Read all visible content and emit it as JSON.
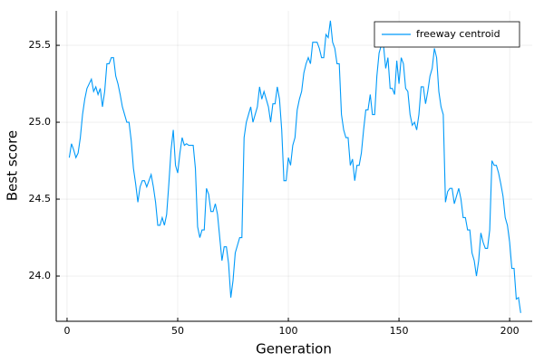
{
  "chart_data": {
    "type": "line",
    "xlabel": "Generation",
    "ylabel": "Best score",
    "xlim": [
      -4.9,
      210.2
    ],
    "ylim": [
      23.706,
      25.724
    ],
    "xticks": [
      0,
      50,
      100,
      150,
      200
    ],
    "yticks": [
      {
        "value": 24,
        "label": "24.0"
      },
      24.5,
      {
        "value": 25,
        "label": "25.0"
      },
      25.5
    ],
    "grid": true,
    "legend": "top-right",
    "x": [
      1,
      2,
      3,
      4,
      5,
      6,
      7,
      8,
      9,
      10,
      11,
      12,
      13,
      14,
      15,
      16,
      17,
      18,
      19,
      20,
      21,
      22,
      23,
      24,
      25,
      26,
      27,
      28,
      29,
      30,
      31,
      32,
      33,
      34,
      35,
      36,
      37,
      38,
      39,
      40,
      41,
      42,
      43,
      44,
      45,
      46,
      47,
      48,
      49,
      50,
      51,
      52,
      53,
      54,
      55,
      56,
      57,
      58,
      59,
      60,
      61,
      62,
      63,
      64,
      65,
      66,
      67,
      68,
      69,
      70,
      71,
      72,
      73,
      74,
      75,
      76,
      77,
      78,
      79,
      80,
      81,
      82,
      83,
      84,
      85,
      86,
      87,
      88,
      89,
      90,
      91,
      92,
      93,
      94,
      95,
      96,
      97,
      98,
      99,
      100,
      101,
      102,
      103,
      104,
      105,
      106,
      107,
      108,
      109,
      110,
      111,
      112,
      113,
      114,
      115,
      116,
      117,
      118,
      119,
      120,
      121,
      122,
      123,
      124,
      125,
      126,
      127,
      128,
      129,
      130,
      131,
      132,
      133,
      134,
      135,
      136,
      137,
      138,
      139,
      140,
      141,
      142,
      143,
      144,
      145,
      146,
      147,
      148,
      149,
      150,
      151,
      152,
      153,
      154,
      155,
      156,
      157,
      158,
      159,
      160,
      161,
      162,
      163,
      164,
      165,
      166,
      167,
      168,
      169,
      170,
      171,
      172,
      173,
      174,
      175,
      176,
      177,
      178,
      179,
      180,
      181,
      182,
      183,
      184,
      185,
      186,
      187,
      188,
      189,
      190,
      191,
      192,
      193,
      194,
      195,
      196,
      197,
      198,
      199,
      200,
      201,
      202,
      203,
      204,
      205
    ],
    "series": [
      {
        "name": "freeway centroid",
        "color": "#009af9",
        "values": [
          24.77,
          24.86,
          24.82,
          24.77,
          24.8,
          24.9,
          25.05,
          25.15,
          25.22,
          25.25,
          25.28,
          25.2,
          25.23,
          25.18,
          25.22,
          25.1,
          25.2,
          25.38,
          25.38,
          25.42,
          25.42,
          25.3,
          25.25,
          25.18,
          25.1,
          25.05,
          25.0,
          25.0,
          24.88,
          24.7,
          24.6,
          24.48,
          24.58,
          24.62,
          24.62,
          24.58,
          24.62,
          24.66,
          24.58,
          24.48,
          24.33,
          24.33,
          24.38,
          24.33,
          24.4,
          24.6,
          24.82,
          24.95,
          24.72,
          24.67,
          24.8,
          24.9,
          24.85,
          24.86,
          24.85,
          24.85,
          24.85,
          24.7,
          24.32,
          24.25,
          24.3,
          24.3,
          24.57,
          24.53,
          24.42,
          24.42,
          24.47,
          24.4,
          24.25,
          24.1,
          24.19,
          24.19,
          24.08,
          23.86,
          23.97,
          24.15,
          24.2,
          24.25,
          24.25,
          24.9,
          25.0,
          25.05,
          25.1,
          25.0,
          25.05,
          25.1,
          25.23,
          25.15,
          25.2,
          25.15,
          25.1,
          25.0,
          25.12,
          25.12,
          25.23,
          25.15,
          24.95,
          24.62,
          24.62,
          24.77,
          24.72,
          24.85,
          24.9,
          25.08,
          25.15,
          25.2,
          25.32,
          25.38,
          25.42,
          25.38,
          25.52,
          25.52,
          25.52,
          25.48,
          25.42,
          25.42,
          25.57,
          25.55,
          25.66,
          25.52,
          25.48,
          25.38,
          25.38,
          25.05,
          24.95,
          24.9,
          24.9,
          24.72,
          24.76,
          24.62,
          24.72,
          24.72,
          24.8,
          24.95,
          25.08,
          25.08,
          25.18,
          25.05,
          25.05,
          25.3,
          25.45,
          25.5,
          25.5,
          25.35,
          25.42,
          25.22,
          25.22,
          25.18,
          25.4,
          25.25,
          25.42,
          25.38,
          25.22,
          25.2,
          25.05,
          24.98,
          25.0,
          24.95,
          25.05,
          25.23,
          25.23,
          25.12,
          25.2,
          25.3,
          25.35,
          25.48,
          25.42,
          25.2,
          25.1,
          25.05,
          24.48,
          24.55,
          24.57,
          24.57,
          24.47,
          24.52,
          24.57,
          24.5,
          24.38,
          24.38,
          24.3,
          24.3,
          24.15,
          24.1,
          24.0,
          24.1,
          24.28,
          24.22,
          24.18,
          24.18,
          24.3,
          24.75,
          24.72,
          24.72,
          24.67,
          24.6,
          24.52,
          24.38,
          24.33,
          24.22,
          24.05,
          24.05,
          23.85,
          23.86,
          23.76
        ]
      }
    ]
  }
}
